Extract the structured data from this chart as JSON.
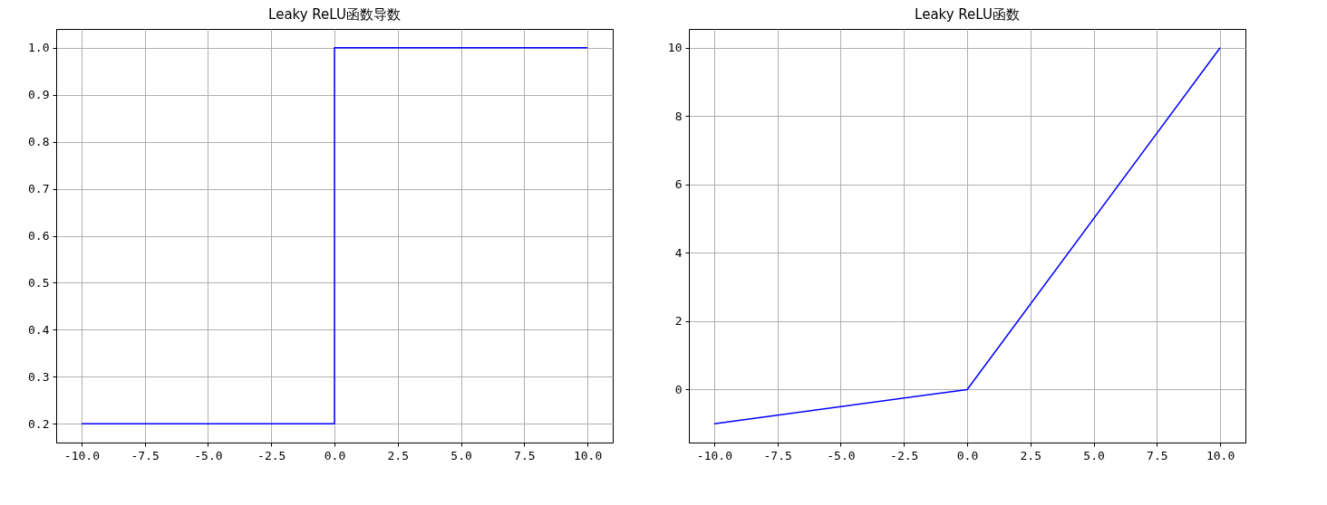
{
  "chart_data": [
    {
      "type": "line",
      "title": "Leaky ReLU函数导数",
      "x": [
        -10,
        0,
        0,
        10
      ],
      "values": [
        0.2,
        0.2,
        1,
        1
      ],
      "color": "#0000ff",
      "xlim": [
        -11,
        11
      ],
      "ylim": [
        0.16,
        1.04
      ],
      "xticks": [
        {
          "value": -10,
          "label": "-10.0"
        },
        {
          "value": -7.5,
          "label": "-7.5"
        },
        {
          "value": -5,
          "label": "-5.0"
        },
        {
          "value": -2.5,
          "label": "-2.5"
        },
        {
          "value": 0,
          "label": "0.0"
        },
        {
          "value": 2.5,
          "label": "2.5"
        },
        {
          "value": 5,
          "label": "5.0"
        },
        {
          "value": 7.5,
          "label": "7.5"
        },
        {
          "value": 10,
          "label": "10.0"
        }
      ],
      "yticks": [
        0.2,
        0.3,
        0.4,
        0.5,
        0.6,
        0.7,
        0.8,
        0.9,
        {
          "value": 1,
          "label": "1.0"
        }
      ],
      "grid": true
    },
    {
      "type": "line",
      "title": "Leaky ReLU函数",
      "x": [
        -10,
        0,
        10
      ],
      "values": [
        -1,
        0,
        10
      ],
      "color": "#0000ff",
      "xlim": [
        -11,
        11
      ],
      "ylim": [
        -1.55,
        10.55
      ],
      "xticks": [
        {
          "value": -10,
          "label": "-10.0"
        },
        {
          "value": -7.5,
          "label": "-7.5"
        },
        {
          "value": -5,
          "label": "-5.0"
        },
        {
          "value": -2.5,
          "label": "-2.5"
        },
        {
          "value": 0,
          "label": "0.0"
        },
        {
          "value": 2.5,
          "label": "2.5"
        },
        {
          "value": 5,
          "label": "5.0"
        },
        {
          "value": 7.5,
          "label": "7.5"
        },
        {
          "value": 10,
          "label": "10.0"
        }
      ],
      "yticks": [
        0,
        2,
        4,
        6,
        8,
        10
      ],
      "grid": true
    }
  ]
}
